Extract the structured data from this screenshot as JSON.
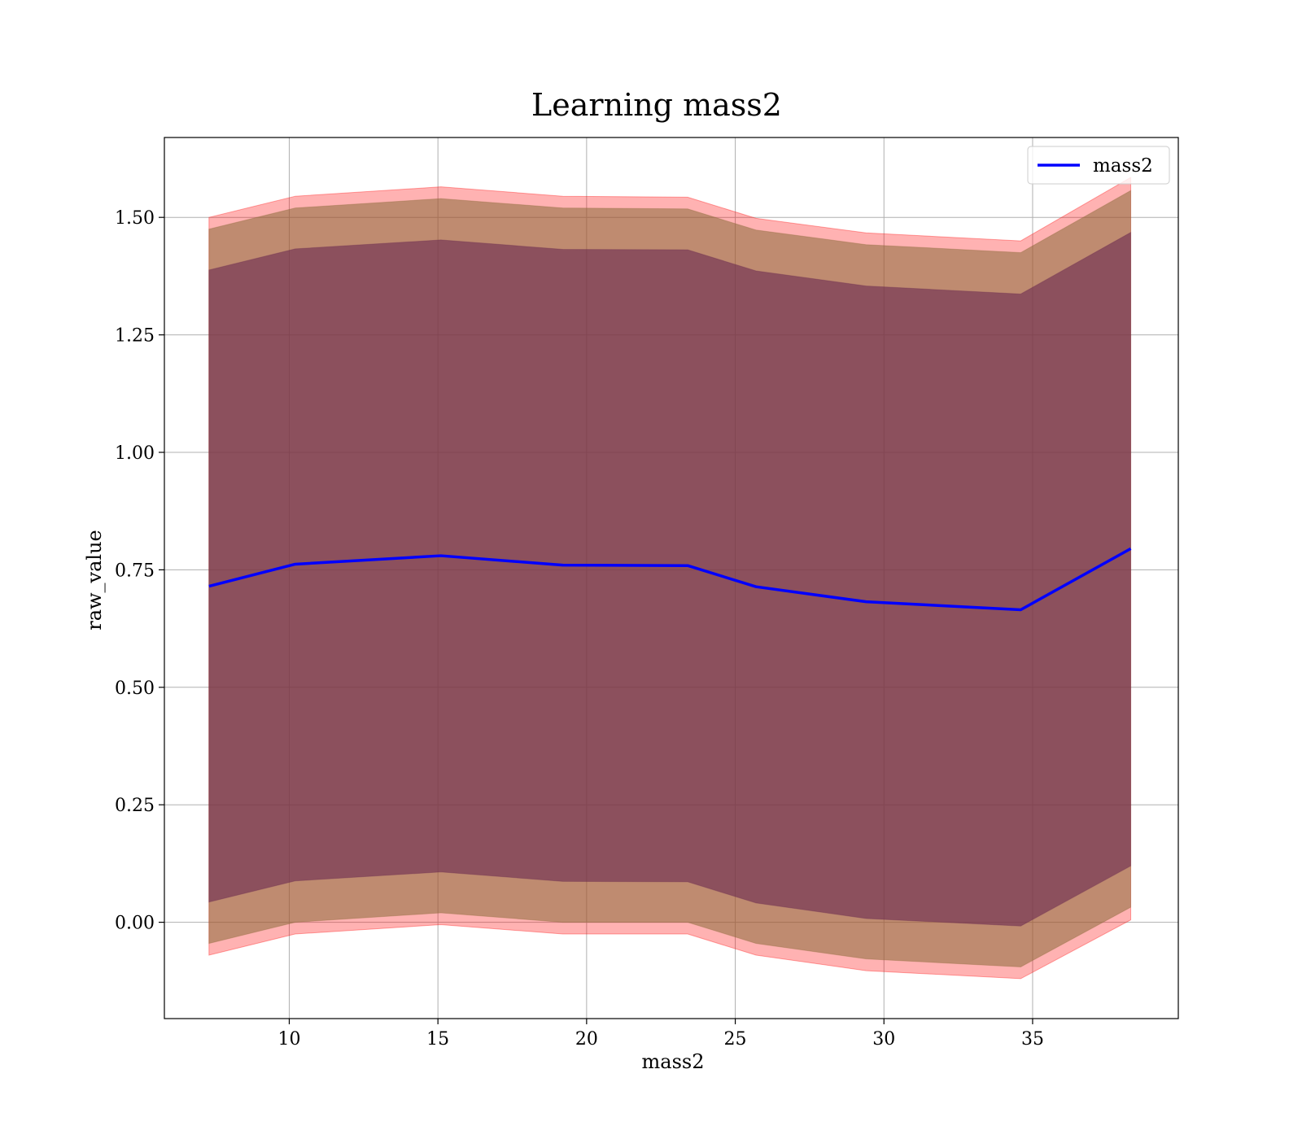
{
  "chart_data": {
    "type": "line",
    "title": "Learning mass2",
    "xlabel": "mass2",
    "ylabel": "raw_value",
    "xlim": [
      5.8,
      39.9
    ],
    "ylim": [
      -0.205,
      1.67
    ],
    "xticks": [
      10,
      15,
      20,
      25,
      30,
      35
    ],
    "xtick_labels": [
      "10",
      "15",
      "20",
      "25",
      "30",
      "35"
    ],
    "yticks": [
      0.0,
      0.25,
      0.5,
      0.75,
      1.0,
      1.25,
      1.5
    ],
    "ytick_labels": [
      "0.00",
      "0.25",
      "0.50",
      "0.75",
      "1.00",
      "1.25",
      "1.50"
    ],
    "grid": true,
    "legend": {
      "placement": "top-right",
      "entries": [
        "mass2"
      ]
    },
    "x": [
      7.3,
      10.2,
      15.1,
      19.2,
      23.4,
      25.7,
      29.4,
      34.6,
      38.3
    ],
    "series": [
      {
        "name": "mass2",
        "color": "#0000ff",
        "values": [
          0.715,
          0.762,
          0.78,
          0.76,
          0.759,
          0.714,
          0.682,
          0.665,
          0.795
        ]
      }
    ],
    "bands": [
      {
        "color": "#ff0000",
        "opacity": 0.3,
        "lower": [
          -0.07,
          -0.025,
          -0.005,
          -0.025,
          -0.025,
          -0.07,
          -0.103,
          -0.12,
          0.005
        ],
        "upper": [
          1.5,
          1.545,
          1.565,
          1.545,
          1.543,
          1.498,
          1.467,
          1.45,
          1.585
        ]
      },
      {
        "color": "#8b6b3a",
        "opacity": 0.55,
        "lower": [
          -0.045,
          0.0,
          0.02,
          0.0,
          0.0,
          -0.045,
          -0.078,
          -0.095,
          0.032
        ],
        "upper": [
          1.475,
          1.52,
          1.54,
          1.52,
          1.518,
          1.473,
          1.442,
          1.425,
          1.557
        ]
      },
      {
        "color": "#6b2a50",
        "opacity": 0.6,
        "lower": [
          0.043,
          0.088,
          0.107,
          0.087,
          0.086,
          0.041,
          0.008,
          -0.008,
          0.12
        ],
        "upper": [
          1.388,
          1.433,
          1.452,
          1.432,
          1.431,
          1.386,
          1.354,
          1.337,
          1.468
        ]
      }
    ]
  }
}
